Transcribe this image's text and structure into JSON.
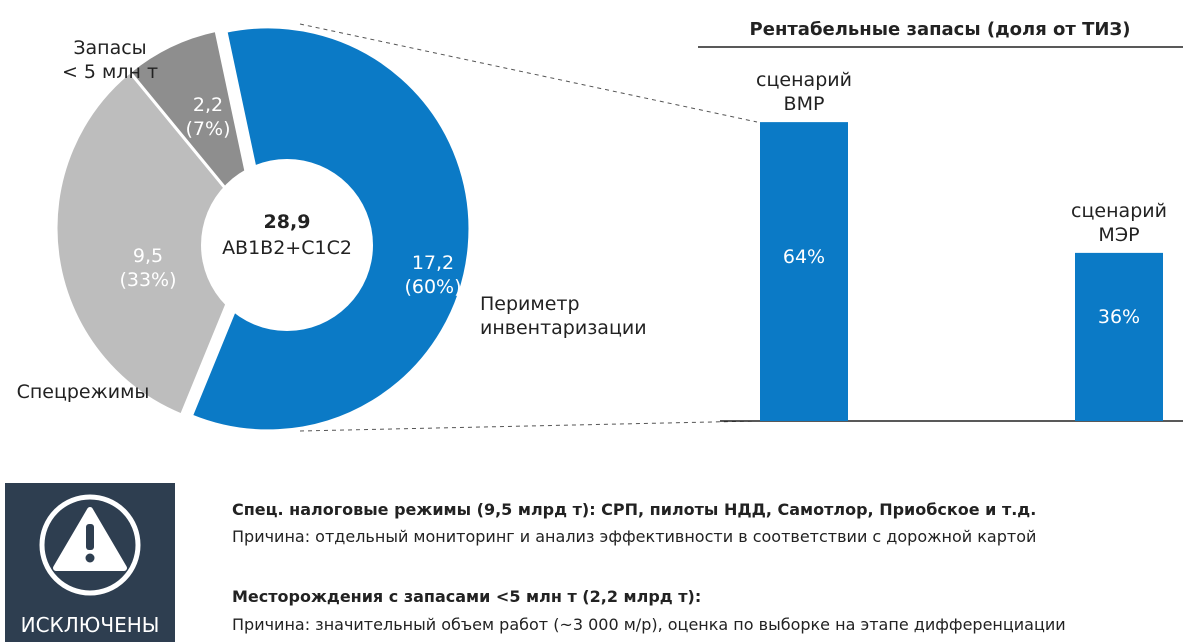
{
  "chart_data": [
    {
      "type": "pie",
      "categories": [
        "Периметр\nинвентаризации",
        "Спецрежимы",
        "Запасы\n< 5 млн т"
      ],
      "values": [
        17.2,
        9.5,
        2.2
      ],
      "value_labels": [
        "17,2\n(60%)",
        "9,5\n(33%)",
        "2,2\n(7%)"
      ],
      "colors": [
        "#0b7ac6",
        "#bdbdbd",
        "#8e8e8e"
      ],
      "total": 28.9,
      "total_label": "28,9",
      "total_caption": "АВ1В2+С1С2"
    },
    {
      "type": "bar",
      "title": "Рентабельные запасы (доля от ТИЗ)",
      "categories": [
        "сценарий\nВМР",
        "сценарий\nМЭР"
      ],
      "values": [
        64,
        36
      ],
      "value_labels": [
        "64%",
        "36%"
      ],
      "color": "#0b7ac6"
    }
  ],
  "notice": {
    "badge": "ИСКЛЮЧЕНЫ",
    "items": [
      {
        "title": "Спец. налоговые режимы (9,5 млрд т): СРП, пилоты НДД, Самотлор, Приобское и т.д.",
        "text": "Причина: отдельный мониторинг и анализ эффективности в соответствии с дорожной картой"
      },
      {
        "title": "Месторождения с запасами <5 млн т (2,2 млрд т):",
        "text": "Причина: значительный объем работ (~3 000 м/р), оценка по выборке на этапе дифференциации"
      }
    ]
  }
}
